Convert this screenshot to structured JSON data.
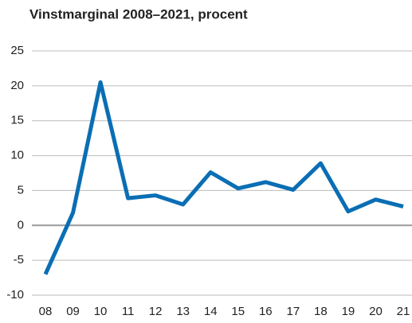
{
  "chart_data": {
    "type": "line",
    "title": "Vinstmarginal 2008–2021, procent",
    "categories": [
      "08",
      "09",
      "10",
      "11",
      "12",
      "13",
      "14",
      "15",
      "16",
      "17",
      "18",
      "19",
      "20",
      "21"
    ],
    "series": [
      {
        "name": "Vinstmarginal",
        "color": "#0a6eb4",
        "values": [
          -7,
          1.8,
          20.5,
          3.9,
          4.3,
          3.0,
          7.6,
          5.3,
          6.2,
          5.1,
          8.9,
          2.0,
          3.7,
          2.7
        ]
      }
    ],
    "ylim": [
      -10,
      25
    ],
    "yticks": [
      25,
      20,
      15,
      10,
      5,
      0,
      -5,
      -10
    ],
    "grid": true
  }
}
